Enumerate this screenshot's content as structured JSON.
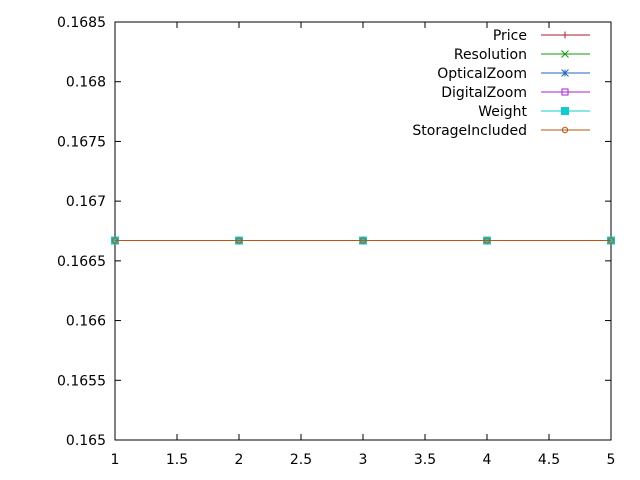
{
  "chart_data": {
    "type": "line",
    "title": "",
    "xlabel": "",
    "ylabel": "",
    "xlim": [
      1,
      5
    ],
    "ylim": [
      0.165,
      0.1685
    ],
    "grid": false,
    "legend_position": "top-right",
    "x_ticks": [
      {
        "value": 1,
        "label": "1"
      },
      {
        "value": 1.5,
        "label": "1.5"
      },
      {
        "value": 2,
        "label": "2"
      },
      {
        "value": 2.5,
        "label": "2.5"
      },
      {
        "value": 3,
        "label": "3"
      },
      {
        "value": 3.5,
        "label": "3.5"
      },
      {
        "value": 4,
        "label": "4"
      },
      {
        "value": 4.5,
        "label": "4.5"
      },
      {
        "value": 5,
        "label": "5"
      }
    ],
    "y_ticks": [
      {
        "value": 0.165,
        "label": "0.165"
      },
      {
        "value": 0.1655,
        "label": "0.1655"
      },
      {
        "value": 0.166,
        "label": "0.166"
      },
      {
        "value": 0.1665,
        "label": "0.1665"
      },
      {
        "value": 0.167,
        "label": "0.167"
      },
      {
        "value": 0.1675,
        "label": "0.1675"
      },
      {
        "value": 0.168,
        "label": "0.168"
      },
      {
        "value": 0.1685,
        "label": "0.1685"
      }
    ],
    "x": [
      1,
      2,
      3,
      4,
      5
    ],
    "series": [
      {
        "name": "Price",
        "color": "#a0202a",
        "marker": "plus",
        "values": [
          0.16667,
          0.16667,
          0.16667,
          0.16667,
          0.16667
        ]
      },
      {
        "name": "Resolution",
        "color": "#119911",
        "marker": "cross",
        "values": [
          0.16667,
          0.16667,
          0.16667,
          0.16667,
          0.16667
        ]
      },
      {
        "name": "OpticalZoom",
        "color": "#2266bb",
        "marker": "star",
        "values": [
          0.16667,
          0.16667,
          0.16667,
          0.16667,
          0.16667
        ]
      },
      {
        "name": "DigitalZoom",
        "color": "#aa22cc",
        "marker": "square-open",
        "values": [
          0.16667,
          0.16667,
          0.16667,
          0.16667,
          0.16667
        ]
      },
      {
        "name": "Weight",
        "color": "#11cccc",
        "marker": "square-filled",
        "values": [
          0.16667,
          0.16667,
          0.16667,
          0.16667,
          0.16667
        ]
      },
      {
        "name": "StorageIncluded",
        "color": "#bb5511",
        "marker": "circle-open",
        "values": [
          0.16667,
          0.16667,
          0.16667,
          0.16667,
          0.16667
        ]
      }
    ]
  }
}
